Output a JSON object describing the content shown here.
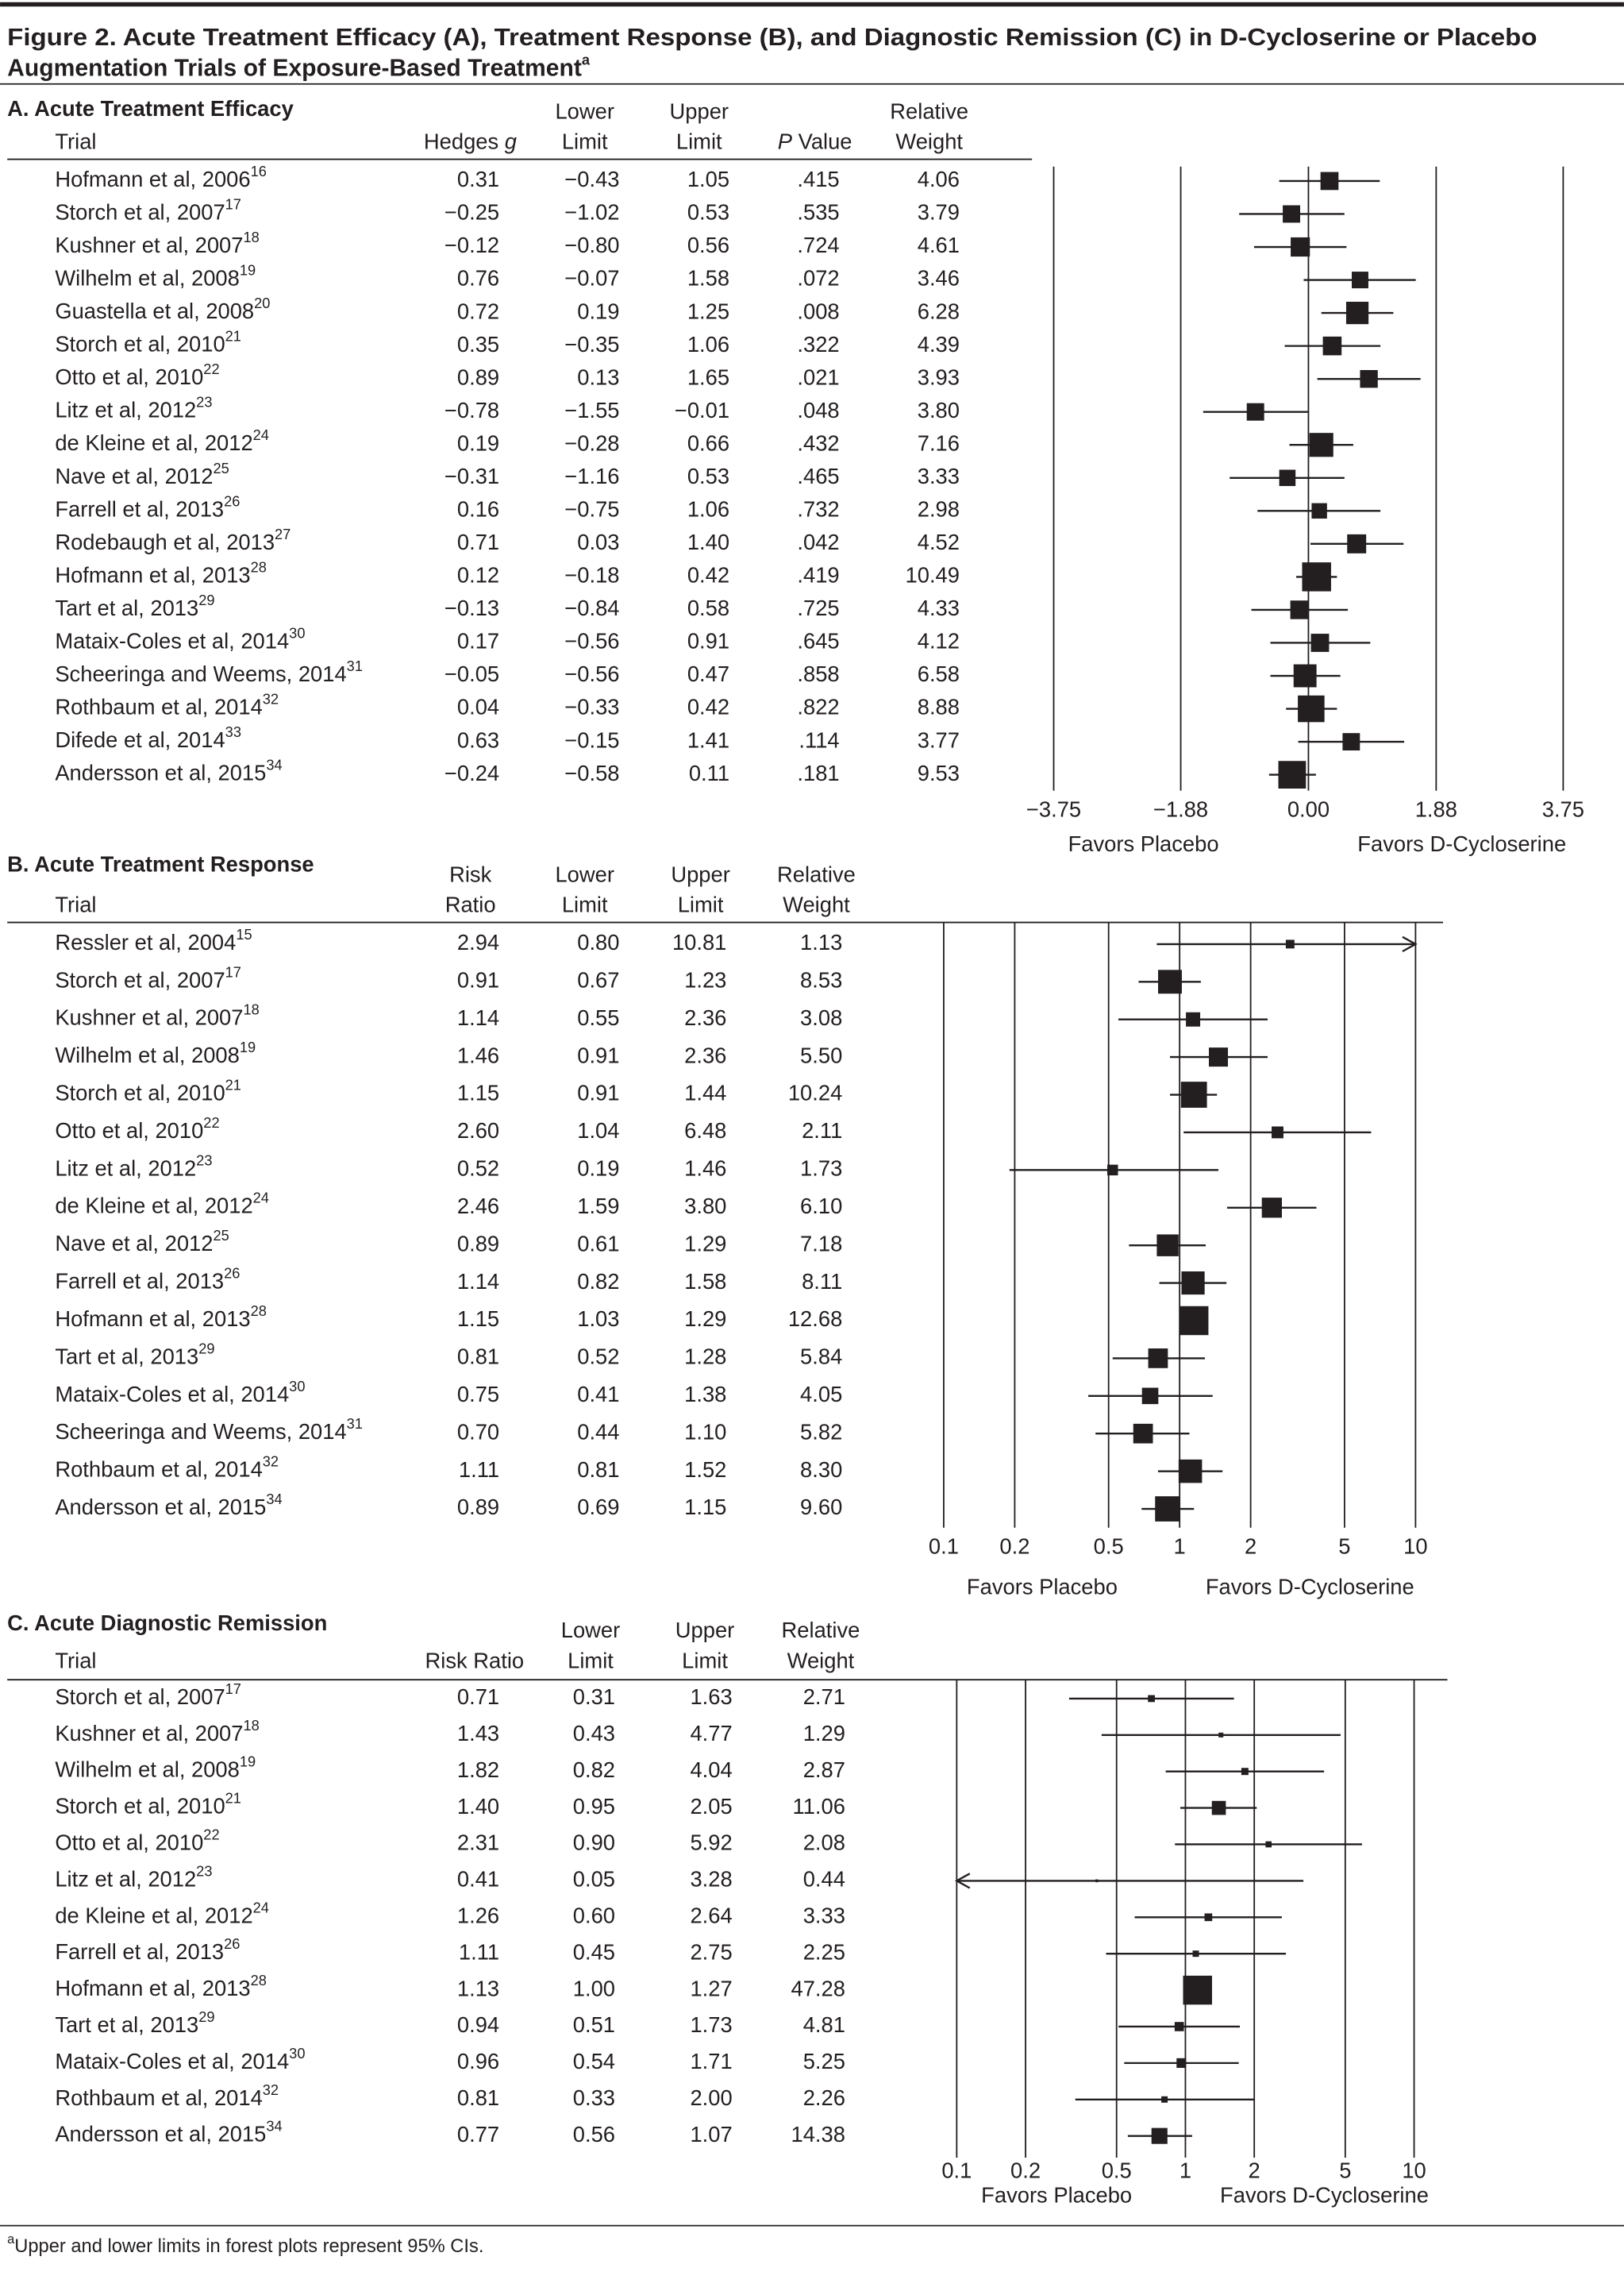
{
  "title": [
    "Figure 2. Acute Treatment Efficacy (A), Treatment Response (B), and Diagnostic Remission (C) in D-Cycloserine or Placebo",
    "Augmentation Trials of Exposure-Based Treatment"
  ],
  "title_note": "a",
  "footnote": {
    "mark": "a",
    "text": "Upper and lower limits in forest plots represent 95% CIs."
  },
  "chart_data": [
    {
      "type": "forest",
      "title": "A. Acute Treatment Efficacy",
      "color": "#231f20",
      "grid": true,
      "log_scale": false,
      "headers": {
        "trial": [
          "Trial"
        ],
        "estimate": [
          [
            "Hedges ",
            {
              "italic": "g"
            }
          ]
        ],
        "lower": [
          "Lower",
          "Limit"
        ],
        "upper": [
          "Upper",
          "Limit"
        ],
        "p_value": [
          [
            {
              "italic": "P"
            },
            " Value"
          ]
        ],
        "weight": [
          "Relative",
          "Weight"
        ]
      },
      "categories": [
        "Hofmann et al, 2006",
        "Storch et al, 2007",
        "Kushner et al, 2007",
        "Wilhelm et al, 2008",
        "Guastella et al, 2008",
        "Storch et al, 2010",
        "Otto et al, 2010",
        "Litz et al, 2012",
        "de Kleine et al, 2012",
        "Nave et al, 2012",
        "Farrell et al, 2013",
        "Rodebaugh et al, 2013",
        "Hofmann et al, 2013",
        "Tart et al, 2013",
        "Mataix-Coles et al, 2014",
        "Scheeringa and Weems, 2014",
        "Rothbaum et al, 2014",
        "Difede et al, 2014",
        "Andersson et al, 2015"
      ],
      "refs": [
        "16",
        "17",
        "18",
        "19",
        "20",
        "21",
        "22",
        "23",
        "24",
        "25",
        "26",
        "27",
        "28",
        "29",
        "30",
        "31",
        "32",
        "33",
        "34"
      ],
      "values": [
        0.31,
        -0.25,
        -0.12,
        0.76,
        0.72,
        0.35,
        0.89,
        -0.78,
        0.19,
        -0.31,
        0.16,
        0.71,
        0.12,
        -0.13,
        0.17,
        -0.05,
        0.04,
        0.63,
        -0.24
      ],
      "value_labels": [
        "0.31",
        "−0.25",
        "−0.12",
        "0.76",
        "0.72",
        "0.35",
        "0.89",
        "−0.78",
        "0.19",
        "−0.31",
        "0.16",
        "0.71",
        "0.12",
        "−0.13",
        "0.17",
        "−0.05",
        "0.04",
        "0.63",
        "−0.24"
      ],
      "lower": [
        -0.43,
        -1.02,
        -0.8,
        -0.07,
        0.19,
        -0.35,
        0.13,
        -1.55,
        -0.28,
        -1.16,
        -0.75,
        0.03,
        -0.18,
        -0.84,
        -0.56,
        -0.56,
        -0.33,
        -0.15,
        -0.58
      ],
      "lower_labels": [
        "−0.43",
        "−1.02",
        "−0.80",
        "−0.07",
        "0.19",
        "−0.35",
        "0.13",
        "−1.55",
        "−0.28",
        "−1.16",
        "−0.75",
        "0.03",
        "−0.18",
        "−0.84",
        "−0.56",
        "−0.56",
        "−0.33",
        "−0.15",
        "−0.58"
      ],
      "upper": [
        1.05,
        0.53,
        0.56,
        1.58,
        1.25,
        1.06,
        1.65,
        -0.01,
        0.66,
        0.53,
        1.06,
        1.4,
        0.42,
        0.58,
        0.91,
        0.47,
        0.42,
        1.41,
        0.11
      ],
      "upper_labels": [
        "1.05",
        "0.53",
        "0.56",
        "1.58",
        "1.25",
        "1.06",
        "1.65",
        "−0.01",
        "0.66",
        "0.53",
        "1.06",
        "1.40",
        "0.42",
        "0.58",
        "0.91",
        "0.47",
        "0.42",
        "1.41",
        "0.11"
      ],
      "p_values": [
        ".415",
        ".535",
        ".724",
        ".072",
        ".008",
        ".322",
        ".021",
        ".048",
        ".432",
        ".465",
        ".732",
        ".042",
        ".419",
        ".725",
        ".645",
        ".858",
        ".822",
        ".114",
        ".181"
      ],
      "weights": [
        4.06,
        3.79,
        4.61,
        3.46,
        6.28,
        4.39,
        3.93,
        3.8,
        7.16,
        3.33,
        2.98,
        4.52,
        10.49,
        4.33,
        4.12,
        6.58,
        8.88,
        3.77,
        9.53
      ],
      "weight_labels": [
        "4.06",
        "3.79",
        "4.61",
        "3.46",
        "6.28",
        "4.39",
        "3.93",
        "3.80",
        "7.16",
        "3.33",
        "2.98",
        "4.52",
        "10.49",
        "4.33",
        "4.12",
        "6.58",
        "8.88",
        "3.77",
        "9.53"
      ],
      "xlim": [
        -3.75,
        3.75
      ],
      "xticks": [
        {
          "value": -3.75,
          "label": "−3.75"
        },
        {
          "value": -1.88,
          "label": "−1.88"
        },
        {
          "value": 0,
          "label": "0.00"
        },
        1.88,
        3.75
      ],
      "favors_left": "Favors Placebo",
      "favors_right": "Favors D-Cycloserine"
    },
    {
      "type": "forest",
      "title": "B. Acute Treatment Response",
      "color": "#231f20",
      "grid": true,
      "log_scale": true,
      "headers": {
        "trial": [
          "Trial"
        ],
        "estimate": [
          "Risk",
          "Ratio"
        ],
        "lower": [
          "Lower",
          "Limit"
        ],
        "upper": [
          "Upper",
          "Limit"
        ],
        "weight": [
          "Relative",
          "Weight"
        ]
      },
      "categories": [
        "Ressler et al, 2004",
        "Storch et al, 2007",
        "Kushner et al, 2007",
        "Wilhelm et al, 2008",
        "Storch et al, 2010",
        "Otto et al, 2010",
        "Litz et al, 2012",
        "de Kleine et al, 2012",
        "Nave et al, 2012",
        "Farrell et al, 2013",
        "Hofmann et al, 2013",
        "Tart et al, 2013",
        "Mataix-Coles et al, 2014",
        "Scheeringa and Weems, 2014",
        "Rothbaum et al, 2014",
        "Andersson et al, 2015"
      ],
      "refs": [
        "15",
        "17",
        "18",
        "19",
        "21",
        "22",
        "23",
        "24",
        "25",
        "26",
        "28",
        "29",
        "30",
        "31",
        "32",
        "34"
      ],
      "values": [
        2.94,
        0.91,
        1.14,
        1.46,
        1.15,
        2.6,
        0.52,
        2.46,
        0.89,
        1.14,
        1.15,
        0.81,
        0.75,
        0.7,
        1.11,
        0.89
      ],
      "value_labels": [
        "2.94",
        "0.91",
        "1.14",
        "1.46",
        "1.15",
        "2.60",
        "0.52",
        "2.46",
        "0.89",
        "1.14",
        "1.15",
        "0.81",
        "0.75",
        "0.70",
        "1.11",
        "0.89"
      ],
      "lower": [
        0.8,
        0.67,
        0.55,
        0.91,
        0.91,
        1.04,
        0.19,
        1.59,
        0.61,
        0.82,
        1.03,
        0.52,
        0.41,
        0.44,
        0.81,
        0.69
      ],
      "lower_labels": [
        "0.80",
        "0.67",
        "0.55",
        "0.91",
        "0.91",
        "1.04",
        "0.19",
        "1.59",
        "0.61",
        "0.82",
        "1.03",
        "0.52",
        "0.41",
        "0.44",
        "0.81",
        "0.69"
      ],
      "upper": [
        10.81,
        1.23,
        2.36,
        2.36,
        1.44,
        6.48,
        1.46,
        3.8,
        1.29,
        1.58,
        1.29,
        1.28,
        1.38,
        1.1,
        1.52,
        1.15
      ],
      "upper_labels": [
        "10.81",
        "1.23",
        "2.36",
        "2.36",
        "1.44",
        "6.48",
        "1.46",
        "3.80",
        "1.29",
        "1.58",
        "1.29",
        "1.28",
        "1.38",
        "1.10",
        "1.52",
        "1.15"
      ],
      "weights": [
        1.13,
        8.53,
        3.08,
        5.5,
        10.24,
        2.11,
        1.73,
        6.1,
        7.18,
        8.11,
        12.68,
        5.84,
        4.05,
        5.82,
        8.3,
        9.6
      ],
      "weight_labels": [
        "1.13",
        "8.53",
        "3.08",
        "5.50",
        "10.24",
        "2.11",
        "1.73",
        "6.10",
        "7.18",
        "8.11",
        "12.68",
        "5.84",
        "4.05",
        "5.82",
        "8.30",
        "9.60"
      ],
      "xlim": [
        0.1,
        10
      ],
      "xticks": [
        0.1,
        0.2,
        0.5,
        1,
        2,
        5,
        10
      ],
      "favors_left": "Favors Placebo",
      "favors_right": "Favors D-Cycloserine"
    },
    {
      "type": "forest",
      "title": "C. Acute Diagnostic Remission",
      "color": "#231f20",
      "grid": true,
      "log_scale": true,
      "headers": {
        "trial": [
          "Trial"
        ],
        "estimate": [
          "Risk Ratio"
        ],
        "lower": [
          "Lower",
          "Limit"
        ],
        "upper": [
          "Upper",
          "Limit"
        ],
        "weight": [
          "Relative",
          "Weight"
        ]
      },
      "categories": [
        "Storch et al, 2007",
        "Kushner et al, 2007",
        "Wilhelm et al, 2008",
        "Storch et al, 2010",
        "Otto et al, 2010",
        "Litz et al, 2012",
        "de Kleine et al, 2012",
        "Farrell et al, 2013",
        "Hofmann et al, 2013",
        "Tart et al, 2013",
        "Mataix-Coles et al, 2014",
        "Rothbaum et al, 2014",
        "Andersson et al, 2015"
      ],
      "refs": [
        "17",
        "18",
        "19",
        "21",
        "22",
        "23",
        "24",
        "26",
        "28",
        "29",
        "30",
        "32",
        "34"
      ],
      "values": [
        0.71,
        1.43,
        1.82,
        1.4,
        2.31,
        0.41,
        1.26,
        1.11,
        1.13,
        0.94,
        0.96,
        0.81,
        0.77
      ],
      "value_labels": [
        "0.71",
        "1.43",
        "1.82",
        "1.40",
        "2.31",
        "0.41",
        "1.26",
        "1.11",
        "1.13",
        "0.94",
        "0.96",
        "0.81",
        "0.77"
      ],
      "lower": [
        0.31,
        0.43,
        0.82,
        0.95,
        0.9,
        0.05,
        0.6,
        0.45,
        1.0,
        0.51,
        0.54,
        0.33,
        0.56
      ],
      "lower_labels": [
        "0.31",
        "0.43",
        "0.82",
        "0.95",
        "0.90",
        "0.05",
        "0.60",
        "0.45",
        "1.00",
        "0.51",
        "0.54",
        "0.33",
        "0.56"
      ],
      "upper": [
        1.63,
        4.77,
        4.04,
        2.05,
        5.92,
        3.28,
        2.64,
        2.75,
        1.27,
        1.73,
        1.71,
        2.0,
        1.07
      ],
      "upper_labels": [
        "1.63",
        "4.77",
        "4.04",
        "2.05",
        "5.92",
        "3.28",
        "2.64",
        "2.75",
        "1.27",
        "1.73",
        "1.71",
        "2.00",
        "1.07"
      ],
      "weights": [
        2.71,
        1.29,
        2.87,
        11.06,
        2.08,
        0.44,
        3.33,
        2.25,
        47.28,
        4.81,
        5.25,
        2.26,
        14.38
      ],
      "weight_labels": [
        "2.71",
        "1.29",
        "2.87",
        "11.06",
        "2.08",
        "0.44",
        "3.33",
        "2.25",
        "47.28",
        "4.81",
        "5.25",
        "2.26",
        "14.38"
      ],
      "xlim": [
        0.1,
        10
      ],
      "xticks": [
        0.1,
        0.2,
        0.5,
        1,
        2,
        5,
        10
      ],
      "favors_left": "Favors Placebo",
      "favors_right": "Favors D-Cycloserine"
    }
  ]
}
